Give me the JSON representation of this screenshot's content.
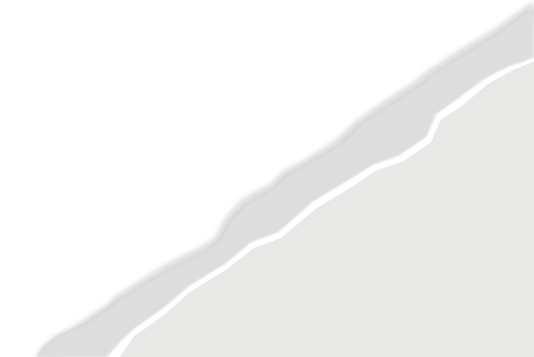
{
  "colors": {
    "background": "#ffffff",
    "edge_band": "#dddddd",
    "surface": "#e8e9e7",
    "shadow": "#c8c8c8"
  }
}
